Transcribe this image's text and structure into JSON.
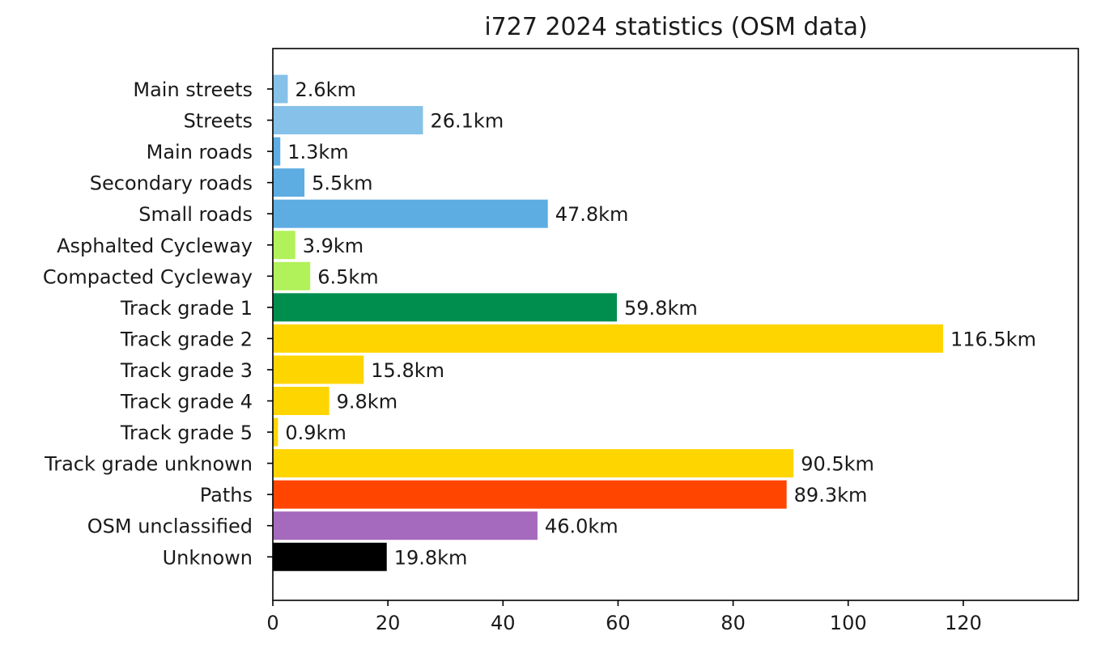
{
  "chart_data": {
    "type": "bar",
    "orientation": "horizontal",
    "title": "i727 2024 statistics (OSM data)",
    "xlabel": "",
    "ylabel": "",
    "xlim": [
      0,
      140
    ],
    "xticks": [
      0,
      20,
      40,
      60,
      80,
      100,
      120
    ],
    "grid": false,
    "value_unit": "km",
    "categories": [
      "Main streets",
      "Streets",
      "Main roads",
      "Secondary roads",
      "Small roads",
      "Asphalted Cycleway",
      "Compacted Cycleway",
      "Track grade 1",
      "Track grade 2",
      "Track grade 3",
      "Track grade 4",
      "Track grade 5",
      "Track grade unknown",
      "Paths",
      "OSM unclassified",
      "Unknown"
    ],
    "values": [
      2.6,
      26.1,
      1.3,
      5.5,
      47.8,
      3.9,
      6.5,
      59.8,
      116.5,
      15.8,
      9.8,
      0.9,
      90.5,
      89.3,
      46.0,
      19.8
    ],
    "value_labels": [
      "2.6km",
      "26.1km",
      "1.3km",
      "5.5km",
      "47.8km",
      "3.9km",
      "6.5km",
      "59.8km",
      "116.5km",
      "15.8km",
      "9.8km",
      "0.9km",
      "90.5km",
      "89.3km",
      "46.0km",
      "19.8km"
    ],
    "colors": [
      "#85c1e9",
      "#85c1e9",
      "#5dade2",
      "#5dade2",
      "#5dade2",
      "#b1f15a",
      "#b1f15a",
      "#008e4f",
      "#ffd500",
      "#ffd500",
      "#ffd500",
      "#ffd500",
      "#ffd500",
      "#ff4500",
      "#a569bd",
      "#000000"
    ]
  }
}
